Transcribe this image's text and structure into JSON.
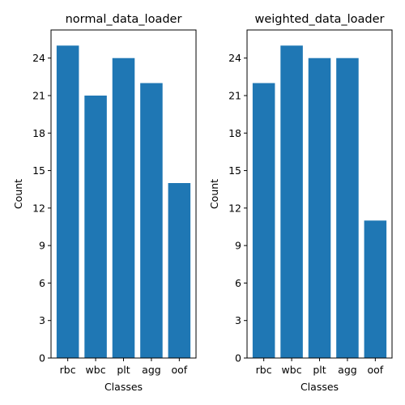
{
  "chart_data": [
    {
      "type": "bar",
      "title": "normal_data_loader",
      "xlabel": "Classes",
      "ylabel": "Count",
      "categories": [
        "rbc",
        "wbc",
        "plt",
        "agg",
        "oof"
      ],
      "values": [
        25,
        21,
        24,
        22,
        14
      ],
      "ylim": [
        0,
        26.25
      ],
      "yticks": [
        0,
        3,
        6,
        9,
        12,
        15,
        18,
        21,
        24
      ],
      "color": "#1f77b4",
      "grid": false
    },
    {
      "type": "bar",
      "title": "weighted_data_loader",
      "xlabel": "Classes",
      "ylabel": "Count",
      "categories": [
        "rbc",
        "wbc",
        "plt",
        "agg",
        "oof"
      ],
      "values": [
        22,
        25,
        24,
        24,
        11
      ],
      "ylim": [
        0,
        26.25
      ],
      "yticks": [
        0,
        3,
        6,
        9,
        12,
        15,
        18,
        21,
        24
      ],
      "color": "#1f77b4",
      "grid": false
    }
  ]
}
